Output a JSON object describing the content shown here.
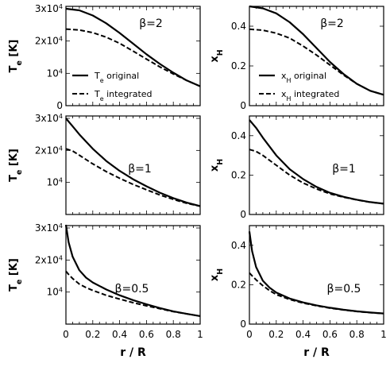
{
  "chart_data": [
    {
      "type": "line",
      "col": 0,
      "row": 0,
      "ylabel": "T_e [K]",
      "annotation": "β=2",
      "xlim": [
        0,
        1
      ],
      "ylim": [
        0,
        30000
      ],
      "yticks": [
        {
          "v": 0,
          "t": "0"
        },
        {
          "v": 10000,
          "t": "10^4"
        },
        {
          "v": 20000,
          "t": "2x10^4"
        },
        {
          "v": 30000,
          "t": "3x10^4"
        }
      ],
      "legend": [
        "T_e original",
        "T_e integrated"
      ],
      "x": [
        0,
        0.1,
        0.2,
        0.3,
        0.4,
        0.5,
        0.6,
        0.7,
        0.8,
        0.9,
        1
      ],
      "series": [
        {
          "style": "solid",
          "values": [
            30000,
            29500,
            27900,
            25500,
            22500,
            19200,
            15900,
            12900,
            10200,
            7800,
            6000
          ]
        },
        {
          "style": "dashed",
          "values": [
            23700,
            23400,
            22600,
            21200,
            19300,
            16900,
            14400,
            12000,
            9800,
            7800,
            6000
          ]
        }
      ]
    },
    {
      "type": "line",
      "col": 0,
      "row": 1,
      "ylabel": "T_e [K]",
      "annotation": "β=1",
      "xlim": [
        0,
        1
      ],
      "ylim": [
        0,
        30000
      ],
      "yticks": [
        {
          "v": 10000,
          "t": "10^4"
        },
        {
          "v": 20000,
          "t": "2x10^4"
        },
        {
          "v": 30000,
          "t": "3x10^4"
        }
      ],
      "x": [
        0,
        0.05,
        0.1,
        0.2,
        0.3,
        0.4,
        0.5,
        0.6,
        0.7,
        0.8,
        0.9,
        1
      ],
      "series": [
        {
          "style": "solid",
          "values": [
            30000,
            27500,
            25000,
            20500,
            16700,
            13600,
            11000,
            8800,
            6800,
            5100,
            3700,
            2600
          ]
        },
        {
          "style": "dashed",
          "values": [
            20500,
            19800,
            18500,
            15800,
            13400,
            11300,
            9400,
            7700,
            6100,
            4700,
            3500,
            2600
          ]
        }
      ]
    },
    {
      "type": "line",
      "col": 0,
      "row": 2,
      "ylabel": "T_e [K]",
      "annotation": "β=0.5",
      "xlim": [
        0,
        1
      ],
      "ylim": [
        0,
        30000
      ],
      "yticks": [
        {
          "v": 10000,
          "t": "10^4"
        },
        {
          "v": 20000,
          "t": "2x10^4"
        },
        {
          "v": 30000,
          "t": "3x10^4"
        }
      ],
      "x": [
        0,
        0.02,
        0.05,
        0.1,
        0.15,
        0.2,
        0.3,
        0.4,
        0.5,
        0.6,
        0.7,
        0.8,
        0.9,
        1
      ],
      "series": [
        {
          "style": "solid",
          "values": [
            31000,
            25500,
            21000,
            16800,
            14500,
            13000,
            10800,
            9000,
            7500,
            6200,
            5000,
            4000,
            3200,
            2500
          ]
        },
        {
          "style": "dashed",
          "values": [
            16500,
            15500,
            14200,
            12500,
            11400,
            10500,
            9000,
            7800,
            6700,
            5700,
            4800,
            3900,
            3200,
            2500
          ]
        }
      ]
    },
    {
      "type": "line",
      "col": 1,
      "row": 0,
      "ylabel": "x_H",
      "annotation": "β=2",
      "xlim": [
        0,
        1
      ],
      "ylim": [
        0,
        0.5
      ],
      "yticks": [
        {
          "v": 0,
          "t": "0"
        },
        {
          "v": 0.2,
          "t": "0.2"
        },
        {
          "v": 0.4,
          "t": "0.4"
        }
      ],
      "legend": [
        "x_H original",
        "x_H integrated"
      ],
      "x": [
        0,
        0.1,
        0.2,
        0.3,
        0.4,
        0.5,
        0.6,
        0.7,
        0.8,
        0.9,
        1
      ],
      "series": [
        {
          "style": "solid",
          "values": [
            0.5,
            0.49,
            0.465,
            0.42,
            0.36,
            0.29,
            0.22,
            0.16,
            0.11,
            0.075,
            0.055
          ]
        },
        {
          "style": "dashed",
          "values": [
            0.385,
            0.38,
            0.365,
            0.34,
            0.3,
            0.255,
            0.205,
            0.155,
            0.11,
            0.075,
            0.055
          ]
        }
      ]
    },
    {
      "type": "line",
      "col": 1,
      "row": 1,
      "ylabel": "x_H",
      "annotation": "β=1",
      "xlim": [
        0,
        1
      ],
      "ylim": [
        0,
        0.5
      ],
      "yticks": [
        {
          "v": 0,
          "t": "0"
        },
        {
          "v": 0.2,
          "t": "0.2"
        },
        {
          "v": 0.4,
          "t": "0.4"
        }
      ],
      "x": [
        0,
        0.05,
        0.1,
        0.2,
        0.3,
        0.4,
        0.5,
        0.6,
        0.7,
        0.8,
        0.9,
        1
      ],
      "series": [
        {
          "style": "solid",
          "values": [
            0.48,
            0.44,
            0.39,
            0.3,
            0.23,
            0.18,
            0.14,
            0.11,
            0.09,
            0.075,
            0.063,
            0.055
          ]
        },
        {
          "style": "dashed",
          "values": [
            0.33,
            0.32,
            0.3,
            0.25,
            0.2,
            0.16,
            0.13,
            0.105,
            0.088,
            0.074,
            0.062,
            0.055
          ]
        }
      ]
    },
    {
      "type": "line",
      "col": 1,
      "row": 2,
      "ylabel": "x_H",
      "annotation": "β=0.5",
      "xlim": [
        0,
        1
      ],
      "ylim": [
        0,
        0.5
      ],
      "yticks": [
        {
          "v": 0,
          "t": "0"
        },
        {
          "v": 0.2,
          "t": "0.2"
        },
        {
          "v": 0.4,
          "t": "0.4"
        }
      ],
      "x": [
        0,
        0.02,
        0.05,
        0.1,
        0.15,
        0.2,
        0.3,
        0.4,
        0.5,
        0.6,
        0.7,
        0.8,
        0.9,
        1
      ],
      "series": [
        {
          "style": "solid",
          "values": [
            0.47,
            0.37,
            0.29,
            0.22,
            0.185,
            0.16,
            0.13,
            0.11,
            0.095,
            0.083,
            0.073,
            0.065,
            0.059,
            0.054
          ]
        },
        {
          "style": "dashed",
          "values": [
            0.26,
            0.245,
            0.225,
            0.195,
            0.17,
            0.15,
            0.125,
            0.107,
            0.093,
            0.081,
            0.072,
            0.064,
            0.058,
            0.054
          ]
        }
      ]
    }
  ],
  "x_axis": {
    "label": "r / R",
    "ticks": [
      "0",
      "0.2",
      "0.4",
      "0.6",
      "0.8",
      "1"
    ]
  }
}
